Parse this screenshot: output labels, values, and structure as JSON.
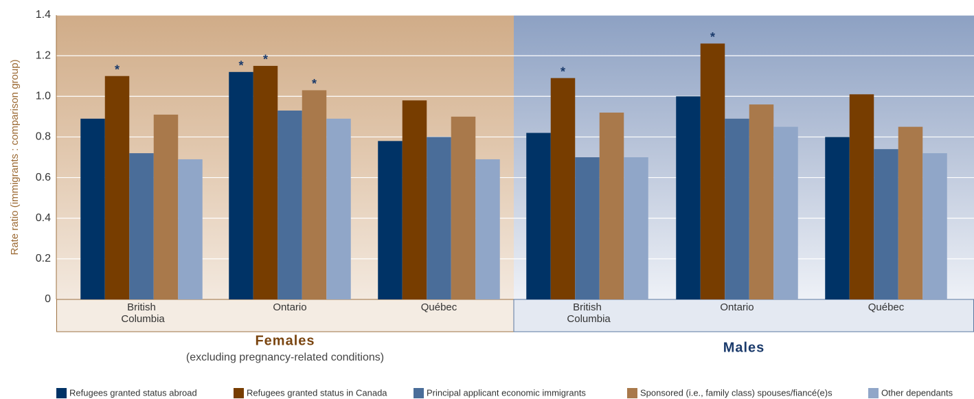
{
  "chart_data": {
    "type": "bar",
    "y_label": "Rate ratio (immigrants : comparison group)",
    "panels": [
      {
        "label": "Females",
        "note": "(excluding pregnancy-related conditions)"
      },
      {
        "label": "Males"
      }
    ],
    "categories": [
      "British Columbia",
      "Ontario",
      "Québec",
      "British Columbia",
      "Ontario",
      "Québec"
    ],
    "series": [
      {
        "name": "Refugees granted status abroad",
        "color": "#003366",
        "values": [
          0.89,
          1.12,
          0.78,
          0.82,
          1.0,
          0.8
        ],
        "flags": [
          null,
          "*",
          null,
          null,
          null,
          null
        ]
      },
      {
        "name": "Refugees granted status in Canada",
        "color": "#773d00",
        "values": [
          1.1,
          1.15,
          0.98,
          1.09,
          1.26,
          1.01
        ],
        "flags": [
          "*",
          "*",
          null,
          "*",
          "*",
          null
        ]
      },
      {
        "name": "Principal applicant economic immigrants",
        "color": "#4a6d99",
        "values": [
          0.72,
          0.93,
          0.8,
          0.7,
          0.89,
          0.74
        ],
        "flags": [
          null,
          null,
          null,
          null,
          null,
          null
        ]
      },
      {
        "name": "Sponsored (i.e., family class) spouses/fiancé(e)s",
        "color": "#a9794b",
        "values": [
          0.91,
          1.03,
          0.9,
          0.92,
          0.96,
          0.85
        ],
        "flags": [
          null,
          "*",
          null,
          null,
          null,
          null
        ]
      },
      {
        "name": "Other dependants",
        "color": "#90a6c8",
        "values": [
          0.69,
          0.89,
          0.69,
          0.7,
          0.85,
          0.72
        ],
        "flags": [
          null,
          null,
          null,
          null,
          null,
          null
        ]
      }
    ],
    "ylim": [
      0,
      1.4
    ],
    "yticks": [
      0,
      0.2,
      0.4,
      0.6,
      0.8,
      {
        "value": 1,
        "label": "1.0"
      },
      1.2,
      1.4
    ],
    "grid": true
  }
}
